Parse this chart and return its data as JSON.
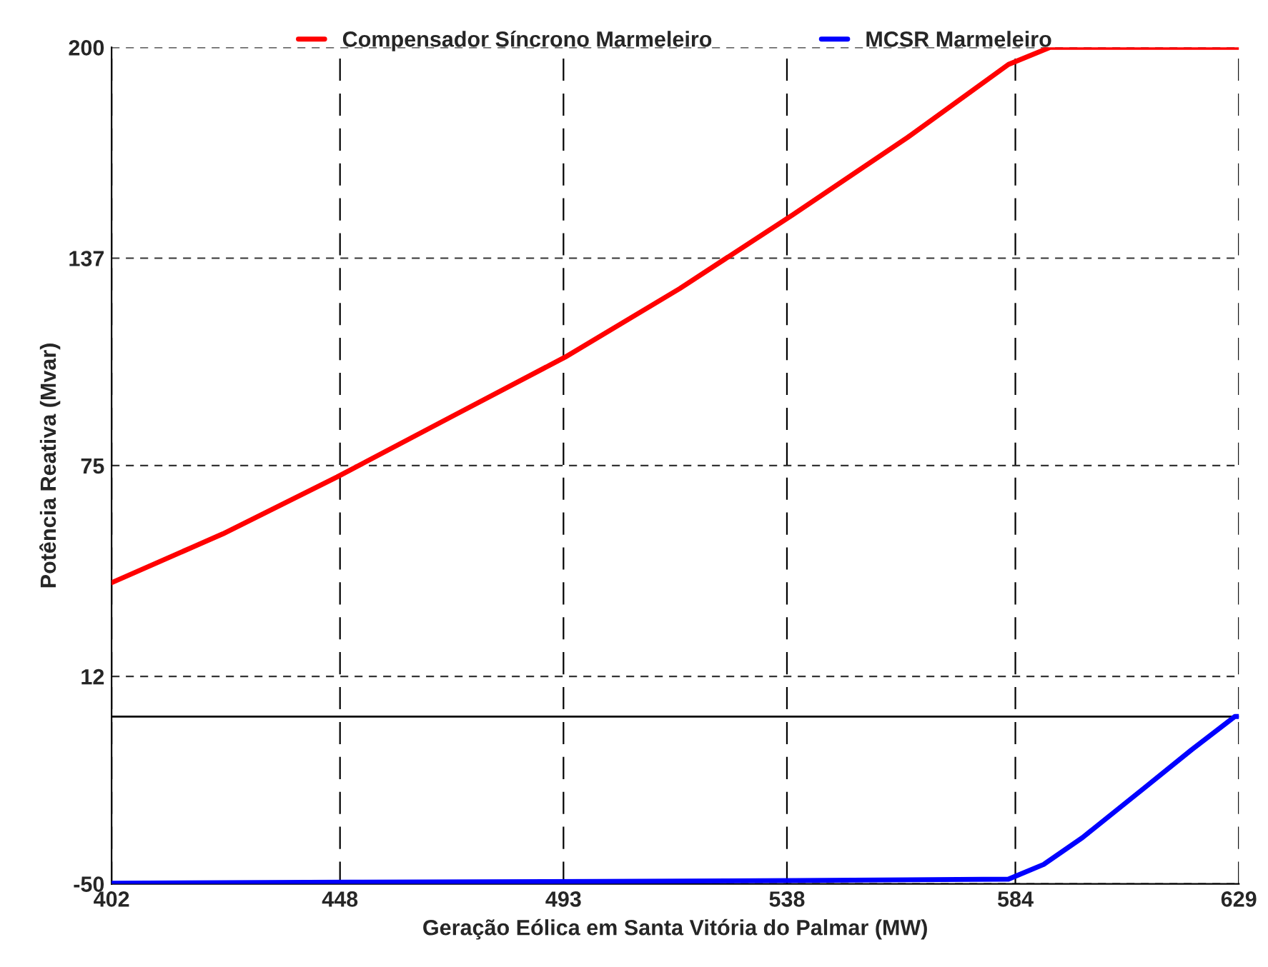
{
  "chart_data": {
    "type": "line",
    "xlabel": "Geração Eólica em Santa Vitória do Palmar (MW)",
    "ylabel": "Potência Reativa (Mvar)",
    "xlim": [
      402,
      629
    ],
    "xticks": [
      402,
      448,
      493,
      538,
      584,
      629
    ],
    "ylim": [
      -50,
      200
    ],
    "yticks": [
      -50,
      12,
      75,
      137,
      200
    ],
    "grid": true,
    "legend": "top",
    "line_style": "solid",
    "marker": "none",
    "ref_lines": [
      {
        "axis": "y",
        "value": 0,
        "color": "#000000",
        "line_style": "solid"
      }
    ],
    "series": [
      {
        "name": "Compensador Síncrono Marmeleiro",
        "color": "#ff0000",
        "x": [
          402,
          424.4,
          447.4,
          470.3,
          493.3,
          516.4,
          539.2,
          562.3,
          582.6,
          591,
          629
        ],
        "values": [
          40,
          54.6,
          71.6,
          89.5,
          107.4,
          127.9,
          150,
          173.1,
          194.9,
          200,
          200
        ]
      },
      {
        "name": "MCSR Marmeleiro",
        "color": "#0000ff",
        "x": [
          402,
          450,
          500,
          540,
          582.6,
          589.7,
          597.5,
          610,
          619.5,
          628.2,
          629
        ],
        "values": [
          -49.8,
          -49.5,
          -49.3,
          -49,
          -48.6,
          -44.2,
          -36.2,
          -21.3,
          -9.9,
          0,
          0
        ]
      }
    ]
  }
}
